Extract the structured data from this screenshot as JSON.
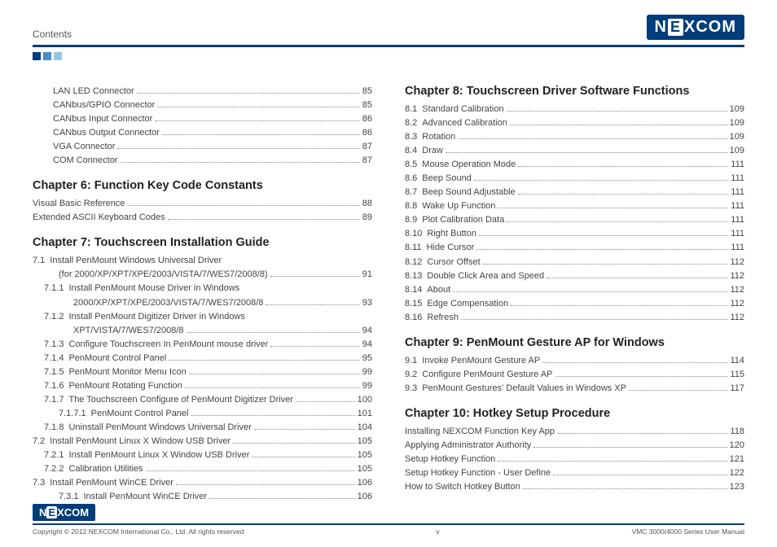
{
  "header": {
    "section": "Contents",
    "logo_text": "NEXCOM"
  },
  "colors": {
    "brand": "#003d7a",
    "mid": "#4a8bc2",
    "light": "#9cc2e0"
  },
  "left_col": {
    "orphan_items": [
      {
        "label": "LAN LED Connector",
        "page": "85",
        "indent": "indent-1"
      },
      {
        "label": "CANbus/GPIO Connector",
        "page": "85",
        "indent": "indent-1"
      },
      {
        "label": "CANbus Input Connector",
        "page": "86",
        "indent": "indent-1"
      },
      {
        "label": "CANbus Output Connector",
        "page": "86",
        "indent": "indent-1"
      },
      {
        "label": "VGA Connector",
        "page": "87",
        "indent": "indent-1"
      },
      {
        "label": "COM Connector",
        "page": "87",
        "indent": "indent-1"
      }
    ],
    "chapters": [
      {
        "title": "Chapter 6: Function Key Code Constants",
        "items": [
          {
            "label": "Visual Basic Reference",
            "page": "88"
          },
          {
            "label": "Extended ASCII Keyboard Codes",
            "page": "89"
          }
        ]
      },
      {
        "title": "Chapter 7: Touchscreen Installation Guide",
        "items": [
          {
            "num": "7.1",
            "label": "Install PenMount Windows Universal Driver",
            "nobreak": true
          },
          {
            "label": "(for 2000/XP/XPT/XPE/2003/VISTA/7/WES7/2008/8)",
            "page": "91",
            "indent": "continuation"
          },
          {
            "num": "7.1.1",
            "label": "Install PenMount Mouse Driver in Windows",
            "indent": "indent-2",
            "nobreak": true
          },
          {
            "label": "2000/XP/XPT/XPE/2003/VISTA/7/WES7/2008/8",
            "page": "93",
            "indent": "continuation-2"
          },
          {
            "num": "7.1.2",
            "label": "Install PenMount Digitizer Driver in Windows",
            "indent": "indent-2",
            "nobreak": true
          },
          {
            "label": "XPT/VISTA/7/WES7/2008/8",
            "page": "94",
            "indent": "continuation-2"
          },
          {
            "num": "7.1.3",
            "label": "Configure Touchscreen In PenMount mouse driver",
            "page": "94",
            "indent": "indent-2"
          },
          {
            "num": "7.1.4",
            "label": "PenMount Control Panel",
            "page": "95",
            "indent": "indent-2"
          },
          {
            "num": "7.1.5",
            "label": "PenMount Monitor Menu Icon",
            "page": "99",
            "indent": "indent-2"
          },
          {
            "num": "7.1.6",
            "label": "PenMount Rotating Function",
            "page": "99",
            "indent": "indent-2"
          },
          {
            "num": "7.1.7",
            "label": "The Touchscreen Configure of PenMount Digitizer Driver",
            "page": "100",
            "indent": "indent-2"
          },
          {
            "num": "7.1.7.1",
            "label": "PenMount Control Panel",
            "page": "101",
            "indent": "indent-3"
          },
          {
            "num": "7.1.8",
            "label": "Uninstall PenMount Windows Universal Driver",
            "page": "104",
            "indent": "indent-2"
          },
          {
            "num": "7.2",
            "label": "Install PenMount Linux X Window USB Driver",
            "page": "105"
          },
          {
            "num": "7.2.1",
            "label": "Install PenMount Linux X Window USB Driver",
            "page": "105",
            "indent": "indent-2"
          },
          {
            "num": "7.2.2",
            "label": "Calibration Utilities",
            "page": "105",
            "indent": "indent-2"
          },
          {
            "num": "7.3",
            "label": "Install PenMount WinCE Driver",
            "page": "106"
          },
          {
            "num": "7.3.1",
            "label": "Install PenMount WinCE Driver",
            "page": "106",
            "indent": "indent-3"
          }
        ]
      }
    ]
  },
  "right_col": {
    "chapters": [
      {
        "title": "Chapter 8: Touchscreen Driver Software Functions",
        "items": [
          {
            "num": "8.1",
            "label": "Standard Calibration",
            "page": "109"
          },
          {
            "num": "8.2",
            "label": "Advanced Calibration",
            "page": "109"
          },
          {
            "num": "8.3",
            "label": "Rotation",
            "page": "109"
          },
          {
            "num": "8.4",
            "label": "Draw",
            "page": "109"
          },
          {
            "num": "8.5",
            "label": "Mouse Operation Mode",
            "page": "111"
          },
          {
            "num": "8.6",
            "label": "Beep Sound",
            "page": "111"
          },
          {
            "num": "8.7",
            "label": "Beep Sound Adjustable",
            "page": "111"
          },
          {
            "num": "8.8",
            "label": "Wake Up Function",
            "page": "111"
          },
          {
            "num": "8.9",
            "label": "Plot Calibration Data",
            "page": "111"
          },
          {
            "num": "8.10",
            "label": "Right Button",
            "page": "111"
          },
          {
            "num": "8.11",
            "label": "Hide Cursor",
            "page": "111"
          },
          {
            "num": "8.12",
            "label": "Cursor Offset",
            "page": "112"
          },
          {
            "num": "8.13",
            "label": "Double Click Area and Speed",
            "page": "112"
          },
          {
            "num": "8.14",
            "label": "About",
            "page": "112"
          },
          {
            "num": "8.15",
            "label": "Edge Compensation",
            "page": "112"
          },
          {
            "num": "8.16",
            "label": "Refresh",
            "page": "112"
          }
        ]
      },
      {
        "title": "Chapter 9: PenMount Gesture AP for Windows",
        "items": [
          {
            "num": "9.1",
            "label": "Invoke PenMount Gesture AP",
            "page": "114"
          },
          {
            "num": "9.2",
            "label": "Configure PenMount Gesture AP",
            "page": "115"
          },
          {
            "num": "9.3",
            "label": "PenMount Gestures' Default Values in Windows XP",
            "page": "117"
          }
        ]
      },
      {
        "title": "Chapter 10: Hotkey Setup Procedure",
        "items": [
          {
            "label": "Installing NEXCOM Function Key App",
            "page": "118"
          },
          {
            "label": "Applying Administrator Authority",
            "page": "120"
          },
          {
            "label": "Setup Hotkey Function",
            "page": "121"
          },
          {
            "label": "Setup Hotkey Function - User Define",
            "page": "122"
          },
          {
            "label": "How to Switch Hotkey Button",
            "page": "123"
          }
        ]
      }
    ]
  },
  "footer": {
    "logo": "NEXCOM",
    "copyright": "Copyright © 2012 NEXCOM International Co., Ltd. All rights reserved",
    "page": "v",
    "doc": "VMC 3000/4000 Series User Manual"
  }
}
